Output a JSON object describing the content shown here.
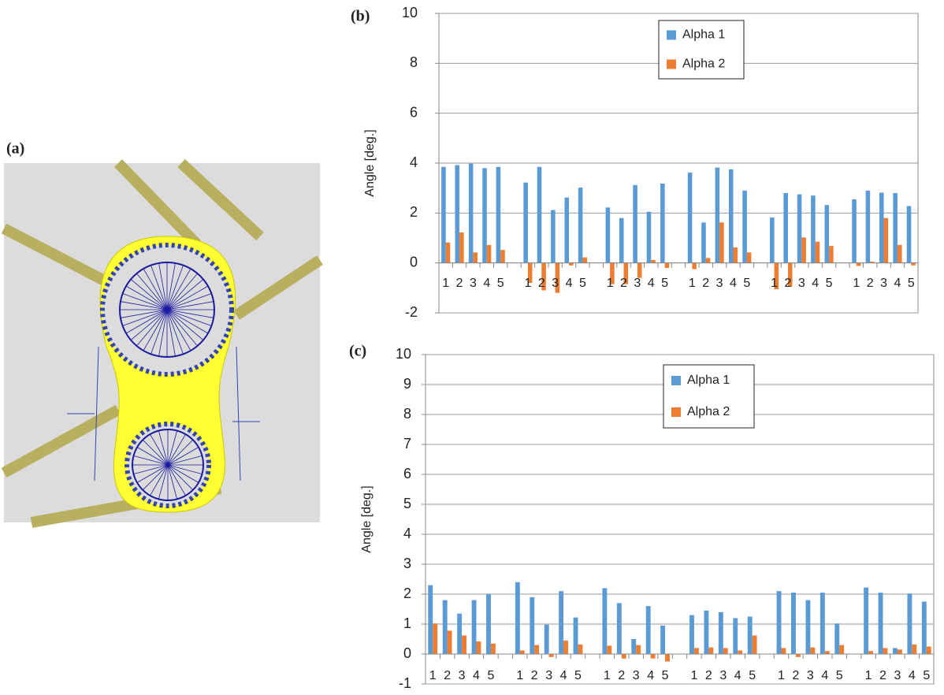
{
  "image_panel": {
    "label": "(a)"
  },
  "chart_data": [
    {
      "type": "bar",
      "label": "(b)",
      "y_label": "Angle [deg.]",
      "categories": [
        "1",
        "2",
        "3",
        "4",
        "5",
        null,
        "1",
        "2",
        "3",
        "4",
        "5",
        null,
        "1",
        "2",
        "3",
        "4",
        "5",
        null,
        "1",
        "2",
        "3",
        "4",
        "5",
        null,
        "1",
        "2",
        "3",
        "4",
        "5",
        null,
        "1",
        "2",
        "3",
        "4",
        "5"
      ],
      "series": [
        {
          "name": "Alpha 1",
          "color": "#5b9bd5",
          "values": [
            3.85,
            3.92,
            3.98,
            3.8,
            3.85,
            null,
            3.22,
            3.85,
            2.12,
            2.62,
            3.02,
            null,
            2.22,
            1.8,
            3.12,
            2.05,
            3.18,
            null,
            3.62,
            1.62,
            3.82,
            3.75,
            2.9,
            null,
            1.82,
            2.8,
            2.75,
            2.7,
            2.32,
            null,
            2.55,
            2.9,
            2.82,
            2.8,
            2.28
          ]
        },
        {
          "name": "Alpha 2",
          "color": "#ed7d31",
          "values": [
            0.82,
            1.22,
            0.42,
            0.72,
            0.52,
            null,
            -0.8,
            -1.1,
            -1.2,
            -0.1,
            0.22,
            null,
            -0.85,
            -0.85,
            -0.6,
            0.12,
            -0.2,
            null,
            -0.25,
            0.2,
            1.62,
            0.62,
            0.42,
            null,
            -1.05,
            -0.95,
            1.02,
            0.85,
            0.68,
            null,
            -0.12,
            0.05,
            1.8,
            0.72,
            -0.1
          ]
        }
      ],
      "ylim": [
        -2,
        10
      ],
      "yticks": [
        -2,
        0,
        2,
        4,
        6,
        8,
        10
      ],
      "grid": true
    },
    {
      "type": "bar",
      "label": "(c)",
      "y_label": "Angle [deg.]",
      "categories": [
        "1",
        "2",
        "3",
        "4",
        "5",
        null,
        "1",
        "2",
        "3",
        "4",
        "5",
        null,
        "1",
        "2",
        "3",
        "4",
        "5",
        null,
        "1",
        "2",
        "3",
        "4",
        "5",
        null,
        "1",
        "2",
        "3",
        "4",
        "5",
        null,
        "1",
        "2",
        "3",
        "4",
        "5"
      ],
      "series": [
        {
          "name": "Alpha 1",
          "color": "#5b9bd5",
          "values": [
            2.3,
            1.8,
            1.35,
            1.8,
            2.0,
            null,
            2.4,
            1.9,
            0.98,
            2.1,
            1.22,
            null,
            2.2,
            1.7,
            0.5,
            1.6,
            0.95,
            null,
            1.3,
            1.45,
            1.4,
            1.2,
            1.25,
            null,
            2.1,
            2.05,
            1.8,
            2.05,
            1.02,
            null,
            2.22,
            2.05,
            0.2,
            2.02,
            1.75
          ]
        },
        {
          "name": "Alpha 2",
          "color": "#ed7d31",
          "values": [
            1.02,
            0.78,
            0.62,
            0.42,
            0.35,
            null,
            0.12,
            0.3,
            -0.1,
            0.45,
            0.32,
            null,
            0.28,
            -0.15,
            0.3,
            -0.15,
            -0.25,
            null,
            0.2,
            0.22,
            0.2,
            0.12,
            0.62,
            null,
            0.2,
            -0.1,
            0.22,
            0.1,
            0.3,
            null,
            0.1,
            0.2,
            0.15,
            0.32,
            0.25
          ]
        }
      ],
      "ylim": [
        -1,
        10
      ],
      "yticks": [
        -1,
        0,
        1,
        2,
        3,
        4,
        5,
        6,
        7,
        8,
        9,
        10
      ],
      "grid": true
    }
  ]
}
